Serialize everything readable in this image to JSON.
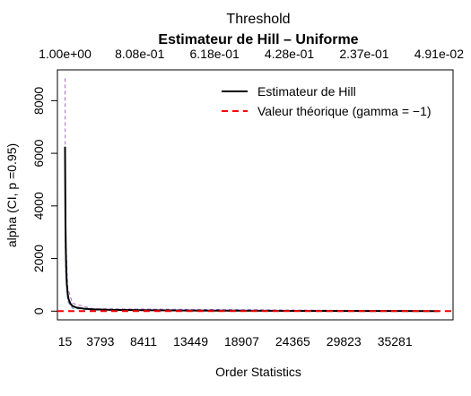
{
  "chart_data": {
    "type": "line",
    "top_axis_title": "Threshold",
    "title": "Estimateur de Hill – Uniforme",
    "xlabel": "Order Statistics",
    "ylabel": "alpha (CI, p =0.95)",
    "x_ticks": [
      "15",
      "3793",
      "8411",
      "13449",
      "18907",
      "24365",
      "29823",
      "35281"
    ],
    "x_tick_values": [
      15,
      3793,
      8411,
      13449,
      18907,
      24365,
      29823,
      35281
    ],
    "top_ticks": [
      "1.00e+00",
      "8.08e-01",
      "6.18e-01",
      "4.28e-01",
      "2.37e-01",
      "4.91e-02"
    ],
    "top_tick_values": [
      15,
      8000,
      16000,
      24000,
      32000,
      40000
    ],
    "y_ticks": [
      0,
      2000,
      4000,
      6000,
      8000
    ],
    "xlim": [
      -800,
      41500
    ],
    "ylim": [
      -330,
      9170
    ],
    "legend_position": "top-right",
    "legend": [
      {
        "label": "Estimateur de Hill",
        "color": "#000000",
        "style": "solid"
      },
      {
        "label": "Valeur théorique (gamma = −1)",
        "color": "#ff0000",
        "style": "dashed"
      }
    ],
    "series": [
      {
        "name": "Estimateur de Hill",
        "color": "#000000",
        "x": [
          15,
          30,
          60,
          100,
          150,
          200,
          300,
          400,
          600,
          800,
          1200,
          2000,
          3000,
          3793,
          5000,
          8411,
          13449,
          18907,
          24365,
          29823,
          35281,
          40000
        ],
        "y": [
          6250,
          5200,
          3400,
          2300,
          1500,
          1050,
          650,
          450,
          280,
          200,
          140,
          95,
          70,
          60,
          50,
          35,
          25,
          18,
          12,
          8,
          5,
          3
        ]
      },
      {
        "name": "Valeur théorique (gamma = −1)",
        "color": "#ff0000",
        "style": "dashed",
        "x": [
          -800,
          41500
        ],
        "y": [
          0,
          0
        ]
      }
    ],
    "ci_upper": {
      "color": "#aa66cc",
      "x": [
        15,
        40,
        100,
        300,
        800,
        3000,
        40000
      ],
      "y": [
        8850,
        6000,
        2800,
        900,
        300,
        90,
        8
      ]
    },
    "ci_lower": {
      "color": "#4488cc",
      "x": [
        15,
        40,
        100,
        300,
        800,
        3000,
        40000
      ],
      "y": [
        3700,
        2600,
        1500,
        380,
        110,
        40,
        0
      ]
    }
  }
}
